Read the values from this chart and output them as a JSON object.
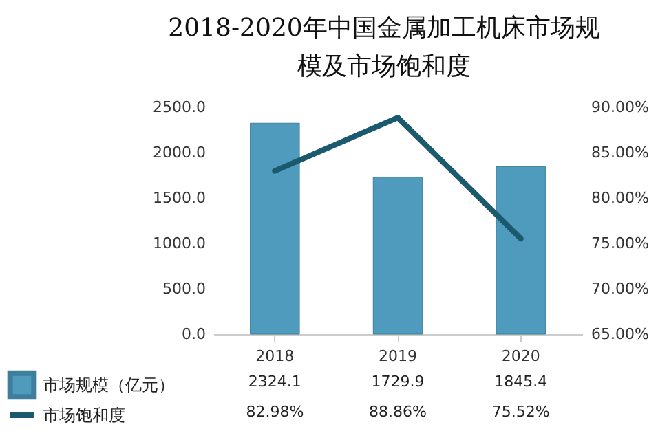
{
  "chart_data": {
    "type": "bar",
    "title": "2018-2020年中国金属加工机床市场规模及市场饱和度",
    "categories": [
      "2018",
      "2019",
      "2020"
    ],
    "series": [
      {
        "name": "市场规模（亿元）",
        "color": "#4f9bbd",
        "values": [
          2324.1,
          1729.9,
          1845.4
        ],
        "value_labels": [
          "2324.1",
          "1729.9",
          "1845.4"
        ]
      },
      {
        "name": "市场饱和度",
        "type": "line",
        "axis": "y2",
        "color": "#1b5a6e",
        "values": [
          82.98,
          88.86,
          75.52
        ],
        "value_labels": [
          "82.98%",
          "88.86%",
          "75.52%"
        ]
      }
    ],
    "ylim": [
      0,
      2500
    ],
    "yticks": [
      {
        "value": 0,
        "label": "0.0"
      },
      {
        "value": 500,
        "label": "500.0"
      },
      {
        "value": 1000,
        "label": "1000.0"
      },
      {
        "value": 1500,
        "label": "1500.0"
      },
      {
        "value": 2000,
        "label": "2000.0"
      },
      {
        "value": 2500,
        "label": "2500.0"
      }
    ],
    "y2lim": [
      65,
      90
    ],
    "y2ticks": [
      {
        "value": 65,
        "label": "65.00%"
      },
      {
        "value": 70,
        "label": "70.00%"
      },
      {
        "value": 75,
        "label": "75.00%"
      },
      {
        "value": 80,
        "label": "80.00%"
      },
      {
        "value": 85,
        "label": "85.00%"
      },
      {
        "value": 90,
        "label": "90.00%"
      }
    ],
    "legend": "bottom"
  }
}
